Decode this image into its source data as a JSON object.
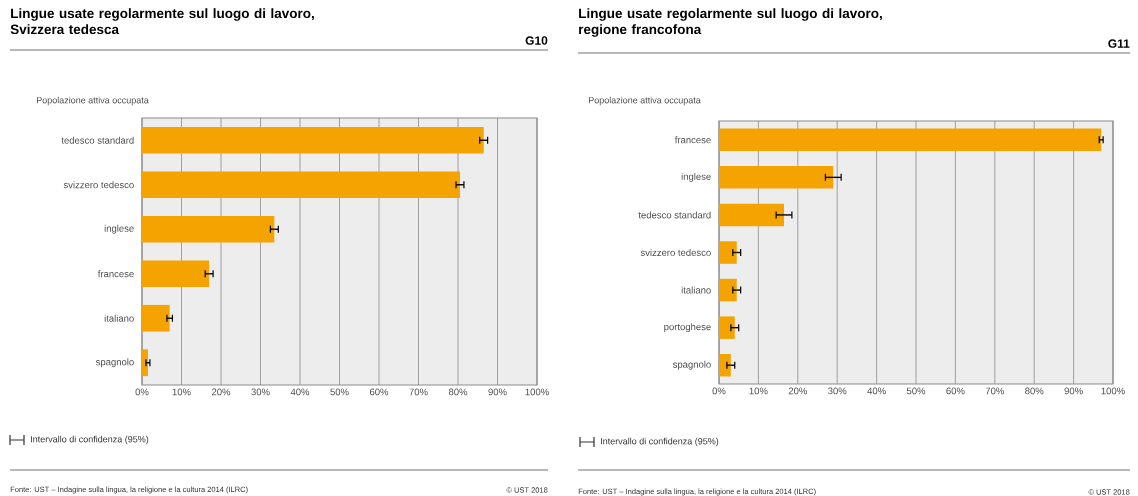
{
  "chart_data": [
    {
      "type": "bar",
      "orientation": "horizontal",
      "title": "Lingue usate regolarmente sul luogo di lavoro, Svizzera tedesca",
      "subtitle": "Popolazione attiva occupata",
      "categories": [
        "tedesco standard",
        "svizzero tedesco",
        "inglese",
        "francese",
        "italiano",
        "spagnolo"
      ],
      "values": [
        86.5,
        80.5,
        33.5,
        17,
        7,
        1.5
      ],
      "errors": [
        1,
        1,
        1,
        1,
        0.7,
        0.5
      ],
      "color": "#f4a300",
      "grid": "x",
      "xlim": [
        0,
        100
      ],
      "xticks": [
        {
          "value": 0,
          "label": "0%"
        },
        {
          "value": 10,
          "label": "10%"
        },
        {
          "value": 20,
          "label": "20%"
        },
        {
          "value": 30,
          "label": "30%"
        },
        {
          "value": 40,
          "label": "40%"
        },
        {
          "value": 50,
          "label": "50%"
        },
        {
          "value": 60,
          "label": "60%"
        },
        {
          "value": 70,
          "label": "70%"
        },
        {
          "value": 80,
          "label": "80%"
        },
        {
          "value": 90,
          "label": "90%"
        },
        {
          "value": 100,
          "label": "100%"
        }
      ],
      "annotations": [
        "G10",
        "Intervallo di confidenza (95%)",
        "Fonte: UST – Indagine sulla lingua, la religione e la cultura 2014 (ILRC)",
        "© UST 2018"
      ]
    },
    {
      "type": "bar",
      "orientation": "horizontal",
      "title": "Lingue usate regolarmente sul luogo di lavoro, regione francofona",
      "subtitle": "Popolazione attiva occupata",
      "categories": [
        "francese",
        "inglese",
        "tedesco standard",
        "svizzero tedesco",
        "italiano",
        "portoghese",
        "spagnolo"
      ],
      "values": [
        97,
        29,
        16.5,
        4.5,
        4.5,
        4,
        3
      ],
      "errors": [
        0.5,
        2,
        2,
        1,
        1,
        1,
        1
      ],
      "color": "#f4a300",
      "grid": "x",
      "xlim": [
        0,
        100
      ],
      "xticks": [
        {
          "value": 0,
          "label": "0%"
        },
        {
          "value": 10,
          "label": "10%"
        },
        {
          "value": 20,
          "label": "20%"
        },
        {
          "value": 30,
          "label": "30%"
        },
        {
          "value": 40,
          "label": "40%"
        },
        {
          "value": 50,
          "label": "50%"
        },
        {
          "value": 60,
          "label": "60%"
        },
        {
          "value": 70,
          "label": "70%"
        },
        {
          "value": 80,
          "label": "80%"
        },
        {
          "value": 90,
          "label": "90%"
        },
        {
          "value": 100,
          "label": "100%"
        }
      ],
      "annotations": [
        "G11",
        "Intervallo di confidenza (95%)",
        "Fonte: UST – Indagine sulla lingua, la religione e la cultura 2014 (ILRC)",
        "© UST 2018"
      ]
    }
  ]
}
